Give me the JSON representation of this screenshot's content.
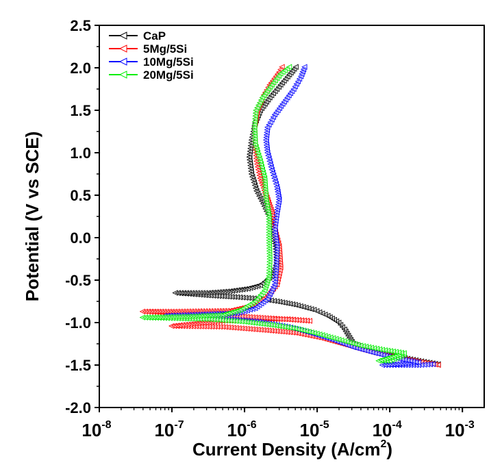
{
  "chart_data": {
    "type": "line",
    "title": "",
    "xlabel": "Current Density (A/cm",
    "xlabel_sup": "2",
    "xlabel_end": ")",
    "ylabel": "Potential (V vs SCE)",
    "xscale": "log",
    "xlim_log10": [
      -8,
      -2.7
    ],
    "ylim": [
      -2.0,
      2.5
    ],
    "x_ticks": [
      {
        "base": "10",
        "exp": "-8",
        "log": -8
      },
      {
        "base": "10",
        "exp": "-7",
        "log": -7
      },
      {
        "base": "10",
        "exp": "-6",
        "log": -6
      },
      {
        "base": "10",
        "exp": "-5",
        "log": -5
      },
      {
        "base": "10",
        "exp": "-4",
        "log": -4
      },
      {
        "base": "10",
        "exp": "-3",
        "log": -3
      }
    ],
    "y_ticks": [
      {
        "label": "2.5",
        "value": 2.5
      },
      {
        "label": "2.0",
        "value": 2.0
      },
      {
        "label": "1.5",
        "value": 1.5
      },
      {
        "label": "1.0",
        "value": 1.0
      },
      {
        "label": "0.5",
        "value": 0.5
      },
      {
        "label": "0.0",
        "value": 0.0
      },
      {
        "label": "-0.5",
        "value": -0.5
      },
      {
        "label": "-1.0",
        "value": -1.0
      },
      {
        "label": "-1.5",
        "value": -1.5
      },
      {
        "label": "-2.0",
        "value": -2.0
      }
    ],
    "grid": false,
    "legend_position": "top-left",
    "series": [
      {
        "name": "CaP",
        "color": "#000000",
        "marker": "left-triangle",
        "points_log10x_y": [
          [
            -3.33,
            -1.49
          ],
          [
            -3.6,
            -1.45
          ],
          [
            -3.9,
            -1.4
          ],
          [
            -4.1,
            -1.35
          ],
          [
            -4.35,
            -1.3
          ],
          [
            -4.5,
            -1.25
          ],
          [
            -4.55,
            -1.18
          ],
          [
            -4.62,
            -1.08
          ],
          [
            -4.7,
            -1.0
          ],
          [
            -4.85,
            -0.92
          ],
          [
            -5.04,
            -0.85
          ],
          [
            -5.3,
            -0.79
          ],
          [
            -5.55,
            -0.75
          ],
          [
            -5.79,
            -0.72
          ],
          [
            -6.1,
            -0.7
          ],
          [
            -6.5,
            -0.68
          ],
          [
            -6.95,
            -0.65
          ],
          [
            -6.5,
            -0.65
          ],
          [
            -6.2,
            -0.63
          ],
          [
            -5.95,
            -0.6
          ],
          [
            -5.78,
            -0.56
          ],
          [
            -5.62,
            -0.45
          ],
          [
            -5.55,
            -0.3
          ],
          [
            -5.57,
            -0.1
          ],
          [
            -5.6,
            0.05
          ],
          [
            -5.66,
            0.25
          ],
          [
            -5.74,
            0.4
          ],
          [
            -5.83,
            0.55
          ],
          [
            -5.9,
            0.75
          ],
          [
            -5.93,
            0.95
          ],
          [
            -5.9,
            1.15
          ],
          [
            -5.85,
            1.35
          ],
          [
            -5.78,
            1.5
          ],
          [
            -5.65,
            1.65
          ],
          [
            -5.5,
            1.8
          ],
          [
            -5.38,
            1.92
          ],
          [
            -5.29,
            2.01
          ]
        ]
      },
      {
        "name": "5Mg/5Si",
        "color": "#ff0000",
        "marker": "left-triangle",
        "points_log10x_y": [
          [
            -3.33,
            -1.5
          ],
          [
            -3.6,
            -1.46
          ],
          [
            -3.9,
            -1.41
          ],
          [
            -4.2,
            -1.36
          ],
          [
            -4.45,
            -1.3
          ],
          [
            -4.7,
            -1.24
          ],
          [
            -4.95,
            -1.18
          ],
          [
            -5.3,
            -1.12
          ],
          [
            -5.7,
            -1.09
          ],
          [
            -6.3,
            -1.05
          ],
          [
            -7.0,
            -1.04
          ],
          [
            -6.3,
            -0.98
          ],
          [
            -5.8,
            -0.96
          ],
          [
            -5.4,
            -0.96
          ],
          [
            -5.1,
            -0.98
          ],
          [
            -6.0,
            -0.93
          ],
          [
            -7.4,
            -0.87
          ],
          [
            -7.0,
            -0.87
          ],
          [
            -6.2,
            -0.86
          ],
          [
            -5.9,
            -0.8
          ],
          [
            -5.7,
            -0.7
          ],
          [
            -5.55,
            -0.55
          ],
          [
            -5.5,
            -0.35
          ],
          [
            -5.52,
            -0.1
          ],
          [
            -5.58,
            0.1
          ],
          [
            -5.62,
            0.3
          ],
          [
            -5.7,
            0.5
          ],
          [
            -5.78,
            0.7
          ],
          [
            -5.83,
            0.9
          ],
          [
            -5.85,
            1.1
          ],
          [
            -5.86,
            1.3
          ],
          [
            -5.82,
            1.5
          ],
          [
            -5.75,
            1.65
          ],
          [
            -5.65,
            1.8
          ],
          [
            -5.52,
            1.95
          ],
          [
            -5.48,
            2.01
          ]
        ]
      },
      {
        "name": "10Mg/5Si",
        "color": "#0000ff",
        "marker": "left-triangle",
        "points_log10x_y": [
          [
            -3.4,
            -1.49
          ],
          [
            -3.6,
            -1.5
          ],
          [
            -3.9,
            -1.5
          ],
          [
            -4.1,
            -1.5
          ],
          [
            -3.6,
            -1.47
          ],
          [
            -3.9,
            -1.42
          ],
          [
            -4.2,
            -1.36
          ],
          [
            -4.5,
            -1.29
          ],
          [
            -4.8,
            -1.2
          ],
          [
            -5.1,
            -1.12
          ],
          [
            -5.4,
            -1.05
          ],
          [
            -5.8,
            -0.99
          ],
          [
            -6.3,
            -0.95
          ],
          [
            -7.1,
            -0.92
          ],
          [
            -6.5,
            -0.9
          ],
          [
            -6.1,
            -0.89
          ],
          [
            -5.85,
            -0.83
          ],
          [
            -5.68,
            -0.72
          ],
          [
            -5.58,
            -0.55
          ],
          [
            -5.56,
            -0.35
          ],
          [
            -5.55,
            -0.1
          ],
          [
            -5.58,
            0.1
          ],
          [
            -5.55,
            0.3
          ],
          [
            -5.52,
            0.45
          ],
          [
            -5.55,
            0.6
          ],
          [
            -5.62,
            0.8
          ],
          [
            -5.68,
            1.0
          ],
          [
            -5.7,
            1.15
          ],
          [
            -5.68,
            1.3
          ],
          [
            -5.58,
            1.45
          ],
          [
            -5.45,
            1.6
          ],
          [
            -5.32,
            1.75
          ],
          [
            -5.22,
            1.9
          ],
          [
            -5.17,
            2.01
          ]
        ]
      },
      {
        "name": "20Mg/5Si",
        "color": "#00ee00",
        "marker": "left-triangle",
        "points_log10x_y": [
          [
            -3.8,
            -1.38
          ],
          [
            -4.0,
            -1.45
          ],
          [
            -4.15,
            -1.45
          ],
          [
            -3.8,
            -1.36
          ],
          [
            -4.1,
            -1.32
          ],
          [
            -4.4,
            -1.27
          ],
          [
            -4.7,
            -1.2
          ],
          [
            -5.0,
            -1.13
          ],
          [
            -5.3,
            -1.07
          ],
          [
            -5.6,
            -1.03
          ],
          [
            -6.0,
            -0.99
          ],
          [
            -6.5,
            -0.96
          ],
          [
            -7.4,
            -0.94
          ],
          [
            -6.8,
            -0.93
          ],
          [
            -6.3,
            -0.91
          ],
          [
            -6.05,
            -0.85
          ],
          [
            -5.85,
            -0.75
          ],
          [
            -5.72,
            -0.62
          ],
          [
            -5.66,
            -0.45
          ],
          [
            -5.65,
            -0.25
          ],
          [
            -5.66,
            0.0
          ],
          [
            -5.66,
            0.25
          ],
          [
            -5.7,
            0.45
          ],
          [
            -5.72,
            0.7
          ],
          [
            -5.78,
            0.9
          ],
          [
            -5.85,
            1.1
          ],
          [
            -5.86,
            1.3
          ],
          [
            -5.84,
            1.5
          ],
          [
            -5.75,
            1.65
          ],
          [
            -5.62,
            1.8
          ],
          [
            -5.5,
            1.93
          ],
          [
            -5.38,
            2.01
          ]
        ]
      }
    ]
  }
}
